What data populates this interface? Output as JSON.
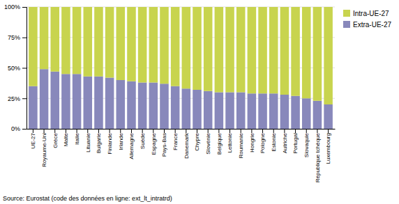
{
  "chart_data": {
    "type": "bar",
    "stacked": true,
    "categories": [
      "UE-27",
      "Royaume-Uni",
      "Grèce",
      "Malte",
      "Italie",
      "Lituanie",
      "Bulgarie",
      "Finlande",
      "Irlande",
      "Allemagne",
      "Suède",
      "Espagne",
      "Pays-Bas",
      "France",
      "Danemark",
      "Chypre",
      "Slovénie",
      "Belgique",
      "Lettonie",
      "Roumanie",
      "Hongrie",
      "Pologne",
      "Estonie",
      "Autriche",
      "Portugal",
      "Slovaquie",
      "République tchèque",
      "Luxembourg"
    ],
    "series": [
      {
        "name": "Extra-UE-27",
        "color": "#8888bb",
        "values": [
          35,
          49,
          47,
          45,
          45,
          43,
          43,
          42,
          40,
          39,
          38,
          38,
          37,
          35,
          33,
          32,
          31,
          30,
          30,
          30,
          29,
          29,
          29,
          28,
          27,
          25,
          23,
          20
        ]
      },
      {
        "name": "Intra-UE-27",
        "color": "#c8d44e",
        "values": [
          65,
          51,
          53,
          55,
          55,
          57,
          57,
          58,
          60,
          61,
          62,
          62,
          63,
          65,
          67,
          68,
          69,
          70,
          70,
          70,
          71,
          71,
          71,
          72,
          73,
          75,
          77,
          80
        ]
      }
    ],
    "ylim": [
      0,
      100
    ],
    "yticks": [
      {
        "value": 0,
        "label": "0%"
      },
      {
        "value": 25,
        "label": "25%"
      },
      {
        "value": 50,
        "label": "50%"
      },
      {
        "value": 75,
        "label": "75%"
      },
      {
        "value": 100,
        "label": "100%"
      }
    ],
    "grid": true,
    "legend": "right",
    "annotations": [
      "Source: Eurostat (code des données en ligne: ext_lt_intratrd)"
    ]
  }
}
